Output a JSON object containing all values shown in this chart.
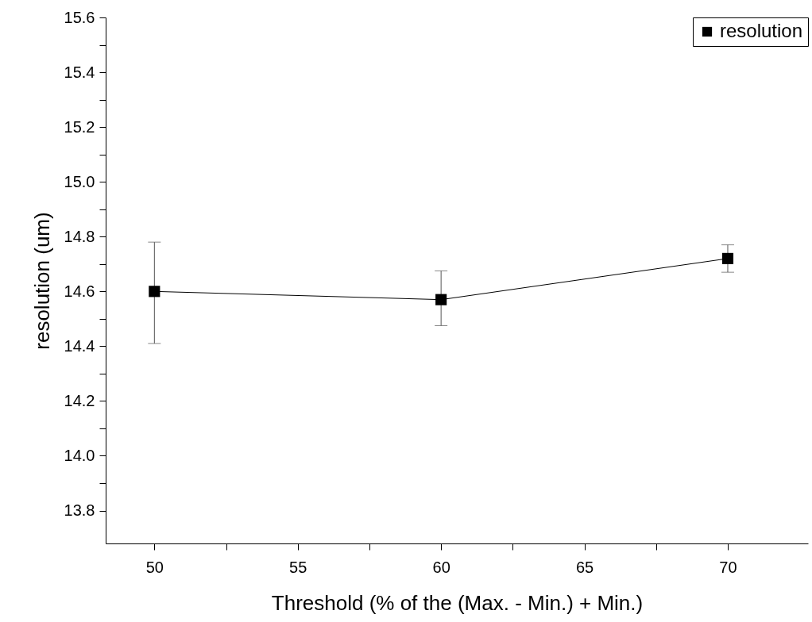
{
  "chart_data": {
    "type": "line",
    "xlabel": "Threshold (% of the (Max. - Min.) + Min.)",
    "ylabel": "resolution (um)",
    "x": [
      50,
      60,
      70
    ],
    "series": [
      {
        "name": "resolution",
        "color": "#000000",
        "values": [
          14.6,
          14.57,
          14.72
        ],
        "errors": [
          [
            14.41,
            14.78
          ],
          [
            14.475,
            14.675
          ],
          [
            14.67,
            14.77
          ]
        ]
      }
    ],
    "xlim": [
      48.3,
      72.8
    ],
    "xticks": [
      50,
      {
        "value": 52.5,
        "label": null
      },
      55,
      {
        "value": 57.5,
        "label": null
      },
      60,
      {
        "value": 62.5,
        "label": null
      },
      65,
      {
        "value": 67.5,
        "label": null
      },
      70
    ],
    "ylim": [
      13.68,
      15.6
    ],
    "yticks": [
      13.8,
      {
        "value": 13.9,
        "label": null
      },
      {
        "value": 14,
        "label": "14.0"
      },
      {
        "value": 14.1,
        "label": null
      },
      14.2,
      {
        "value": 14.3,
        "label": null
      },
      14.4,
      {
        "value": 14.5,
        "label": null
      },
      14.6,
      {
        "value": 14.7,
        "label": null
      },
      14.8,
      {
        "value": 14.9,
        "label": null
      },
      {
        "value": 15,
        "label": "15.0"
      },
      {
        "value": 15.1,
        "label": null
      },
      15.2,
      {
        "value": 15.3,
        "label": null
      },
      15.4,
      {
        "value": 15.5,
        "label": null
      },
      15.6
    ],
    "marker": "square",
    "line_style": "solid",
    "legend": "top right",
    "grid": false
  }
}
